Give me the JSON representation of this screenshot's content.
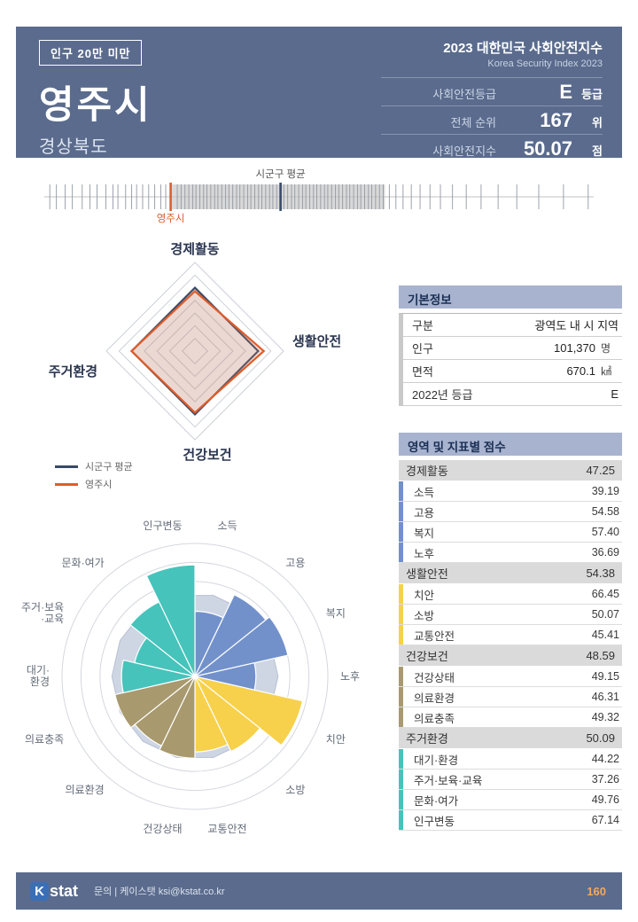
{
  "header": {
    "badge": "인구 20만 미만",
    "city": "영주시",
    "province": "경상북도",
    "title": "2023 대한민국 사회안전지수",
    "subtitle": "Korea Security Index 2023",
    "stats": [
      {
        "label": "사회안전등급",
        "value": "E",
        "unit": "등급"
      },
      {
        "label": "전체 순위",
        "value": "167",
        "unit": "위"
      },
      {
        "label": "사회안전지수",
        "value": "50.07",
        "unit": "점"
      }
    ]
  },
  "basic_info": {
    "title": "기본정보",
    "rows": [
      {
        "label": "구분",
        "value": "광역도 내 시 지역",
        "unit": ""
      },
      {
        "label": "인구",
        "value": "101,370",
        "unit": "명"
      },
      {
        "label": "면적",
        "value": "670.1",
        "unit": "㎢"
      },
      {
        "label": "2022년 등급",
        "value": "E",
        "unit": ""
      }
    ]
  },
  "scores": {
    "title": "영역 및 지표별 점수",
    "sections": [
      {
        "name": "경제활동",
        "score": "47.25",
        "color": "#7291cb",
        "items": [
          {
            "name": "소득",
            "score": "39.19"
          },
          {
            "name": "고용",
            "score": "54.58"
          },
          {
            "name": "복지",
            "score": "57.40"
          },
          {
            "name": "노후",
            "score": "36.69"
          }
        ]
      },
      {
        "name": "생활안전",
        "score": "54.38",
        "color": "#f7d14b",
        "items": [
          {
            "name": "치안",
            "score": "66.45"
          },
          {
            "name": "소방",
            "score": "50.07"
          },
          {
            "name": "교통안전",
            "score": "45.41"
          }
        ]
      },
      {
        "name": "건강보건",
        "score": "48.59",
        "color": "#a89a6e",
        "items": [
          {
            "name": "건강상태",
            "score": "49.15"
          },
          {
            "name": "의료환경",
            "score": "46.31"
          },
          {
            "name": "의료충족",
            "score": "49.32"
          }
        ]
      },
      {
        "name": "주거환경",
        "score": "50.09",
        "color": "#46c3bb",
        "items": [
          {
            "name": "대기·환경",
            "score": "44.22"
          },
          {
            "name": "주거·보육·교육",
            "score": "37.26"
          },
          {
            "name": "문화·여가",
            "score": "49.76"
          },
          {
            "name": "인구변동",
            "score": "67.14"
          }
        ]
      }
    ]
  },
  "footer": {
    "logo_k": "K",
    "logo_text": "stat",
    "contact": "문의 | 케이스탯 ksi@kstat.co.kr",
    "page": "160"
  },
  "chart_data": [
    {
      "id": "score-distribution-strip",
      "type": "strip",
      "axis_range_pct": [
        0,
        100
      ],
      "band_pct": [
        23.2,
        62.0
      ],
      "ticks_pct": [
        1.0,
        2.2,
        3.8,
        5.1,
        6.9,
        8.3,
        9.6,
        11.2,
        12.5,
        13.4,
        14.8,
        15.9,
        16.8,
        17.9,
        19.0,
        20.1,
        21.2,
        22.1,
        24.2,
        24.9,
        25.6,
        26.3,
        27.0,
        27.6,
        28.3,
        29.0,
        29.6,
        30.3,
        31.0,
        31.6,
        32.3,
        33.0,
        33.6,
        34.3,
        35.0,
        35.6,
        36.3,
        37.0,
        37.6,
        38.3,
        39.0,
        39.6,
        40.3,
        41.0,
        41.6,
        42.3,
        43.6,
        44.3,
        45.0,
        45.6,
        46.3,
        47.0,
        47.6,
        48.3,
        49.0,
        49.6,
        50.3,
        51.0,
        51.6,
        52.3,
        53.0,
        53.6,
        54.3,
        55.0,
        55.6,
        56.3,
        57.0,
        57.6,
        58.3,
        59.0,
        59.6,
        60.3,
        61.0,
        61.7,
        62.8,
        64.0,
        65.3,
        66.8,
        68.4,
        70.2,
        72.1,
        74.3,
        76.8,
        79.5,
        82.6,
        86.0,
        90.0,
        94.5,
        99.0
      ],
      "markers": [
        {
          "label": "시군구 평균",
          "pct": 43.0,
          "color": "#3a4a64",
          "label_pos": "above"
        },
        {
          "label": "영주시",
          "pct": 23.0,
          "color": "#d95f2b",
          "label_pos": "below"
        }
      ]
    },
    {
      "id": "area-radar",
      "type": "radar",
      "axes": [
        "경제활동",
        "생활안전",
        "건강보건",
        "주거환경"
      ],
      "max": 70,
      "rings": 7,
      "legend_position": "bottom-left",
      "series": [
        {
          "name": "시군구 평균",
          "color": "#3a4a64",
          "values": [
            50,
            50,
            50,
            50
          ]
        },
        {
          "name": "영주시",
          "color": "#e05c2a",
          "values": [
            47.25,
            54.38,
            48.59,
            50.09
          ]
        }
      ]
    },
    {
      "id": "indicator-rose",
      "type": "rose",
      "max": 80,
      "rings": 7,
      "categories": [
        "소득",
        "고용",
        "복지",
        "노후",
        "치안",
        "소방",
        "교통안전",
        "건강상태",
        "의료환경",
        "의료충족",
        "대기·환경",
        "주거·보육·교육",
        "문화·여가",
        "인구변동"
      ],
      "label_lines": [
        [
          "소득"
        ],
        [
          "고용"
        ],
        [
          "복지"
        ],
        [
          "노후"
        ],
        [
          "치안"
        ],
        [
          "소방"
        ],
        [
          "교통안전"
        ],
        [
          "건강상태"
        ],
        [
          "의료환경"
        ],
        [
          "의료충족"
        ],
        [
          "대기·",
          "환경"
        ],
        [
          "주거·보육",
          "·교육"
        ],
        [
          "문화·여가"
        ],
        [
          "인구변동"
        ]
      ],
      "values": [
        39.19,
        54.58,
        57.4,
        36.69,
        66.45,
        50.07,
        45.41,
        49.15,
        46.31,
        49.32,
        44.22,
        37.26,
        49.76,
        67.14
      ],
      "colors": [
        "#7291cb",
        "#7291cb",
        "#7291cb",
        "#7291cb",
        "#f7d14b",
        "#f7d14b",
        "#f7d14b",
        "#a89a6e",
        "#a89a6e",
        "#a89a6e",
        "#46c3bb",
        "#46c3bb",
        "#46c3bb",
        "#46c3bb"
      ],
      "background_series": {
        "name": "시군구 평균",
        "color": "#ced6e4",
        "stroke": "#b7c0d2",
        "values": [
          50,
          50,
          50,
          50,
          50,
          50,
          50,
          50,
          50,
          50,
          50,
          50,
          50,
          50
        ]
      }
    }
  ]
}
